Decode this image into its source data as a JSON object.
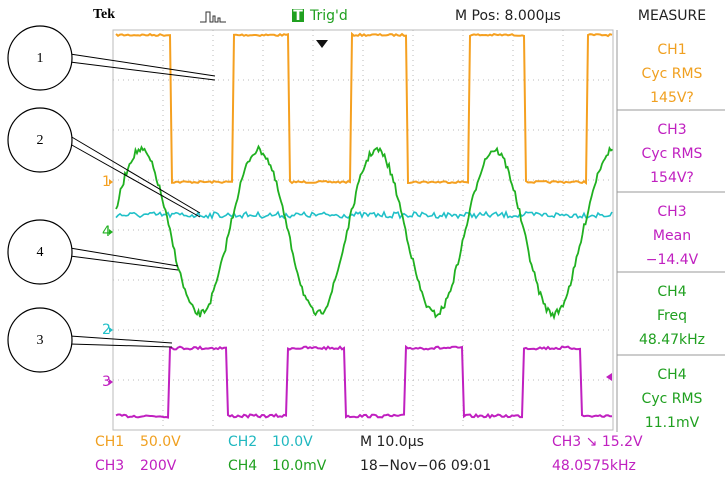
{
  "header": {
    "brand": "Tek",
    "trigger_icon": "T",
    "trigger_status": "Trig'd",
    "m_pos": "M Pos: 8.000µs",
    "panel_title": "MEASURE"
  },
  "measurements": [
    {
      "channel": "CH1",
      "label": "Cyc RMS",
      "value": "145V?"
    },
    {
      "channel": "CH3",
      "label": "Cyc RMS",
      "value": "154V?"
    },
    {
      "channel": "CH3",
      "label": "Mean",
      "value": "−14.4V"
    },
    {
      "channel": "CH4",
      "label": "Freq",
      "value": "48.47kHz"
    },
    {
      "channel": "CH4",
      "label": "Cyc RMS",
      "value": "11.1mV"
    }
  ],
  "status": [
    [
      "CH1",
      "50.0V",
      "CH2",
      "10.0V",
      "M 10.0µs",
      "CH3 ↘ 15.2V"
    ],
    [
      "CH3",
      "200V",
      "CH4",
      "10.0mV",
      "18−Nov−06 09:01",
      "48.0575kHz"
    ]
  ],
  "markers": [
    "1",
    "4",
    "2",
    "3"
  ],
  "callouts": [
    "1",
    "2",
    "4",
    "3"
  ]
}
